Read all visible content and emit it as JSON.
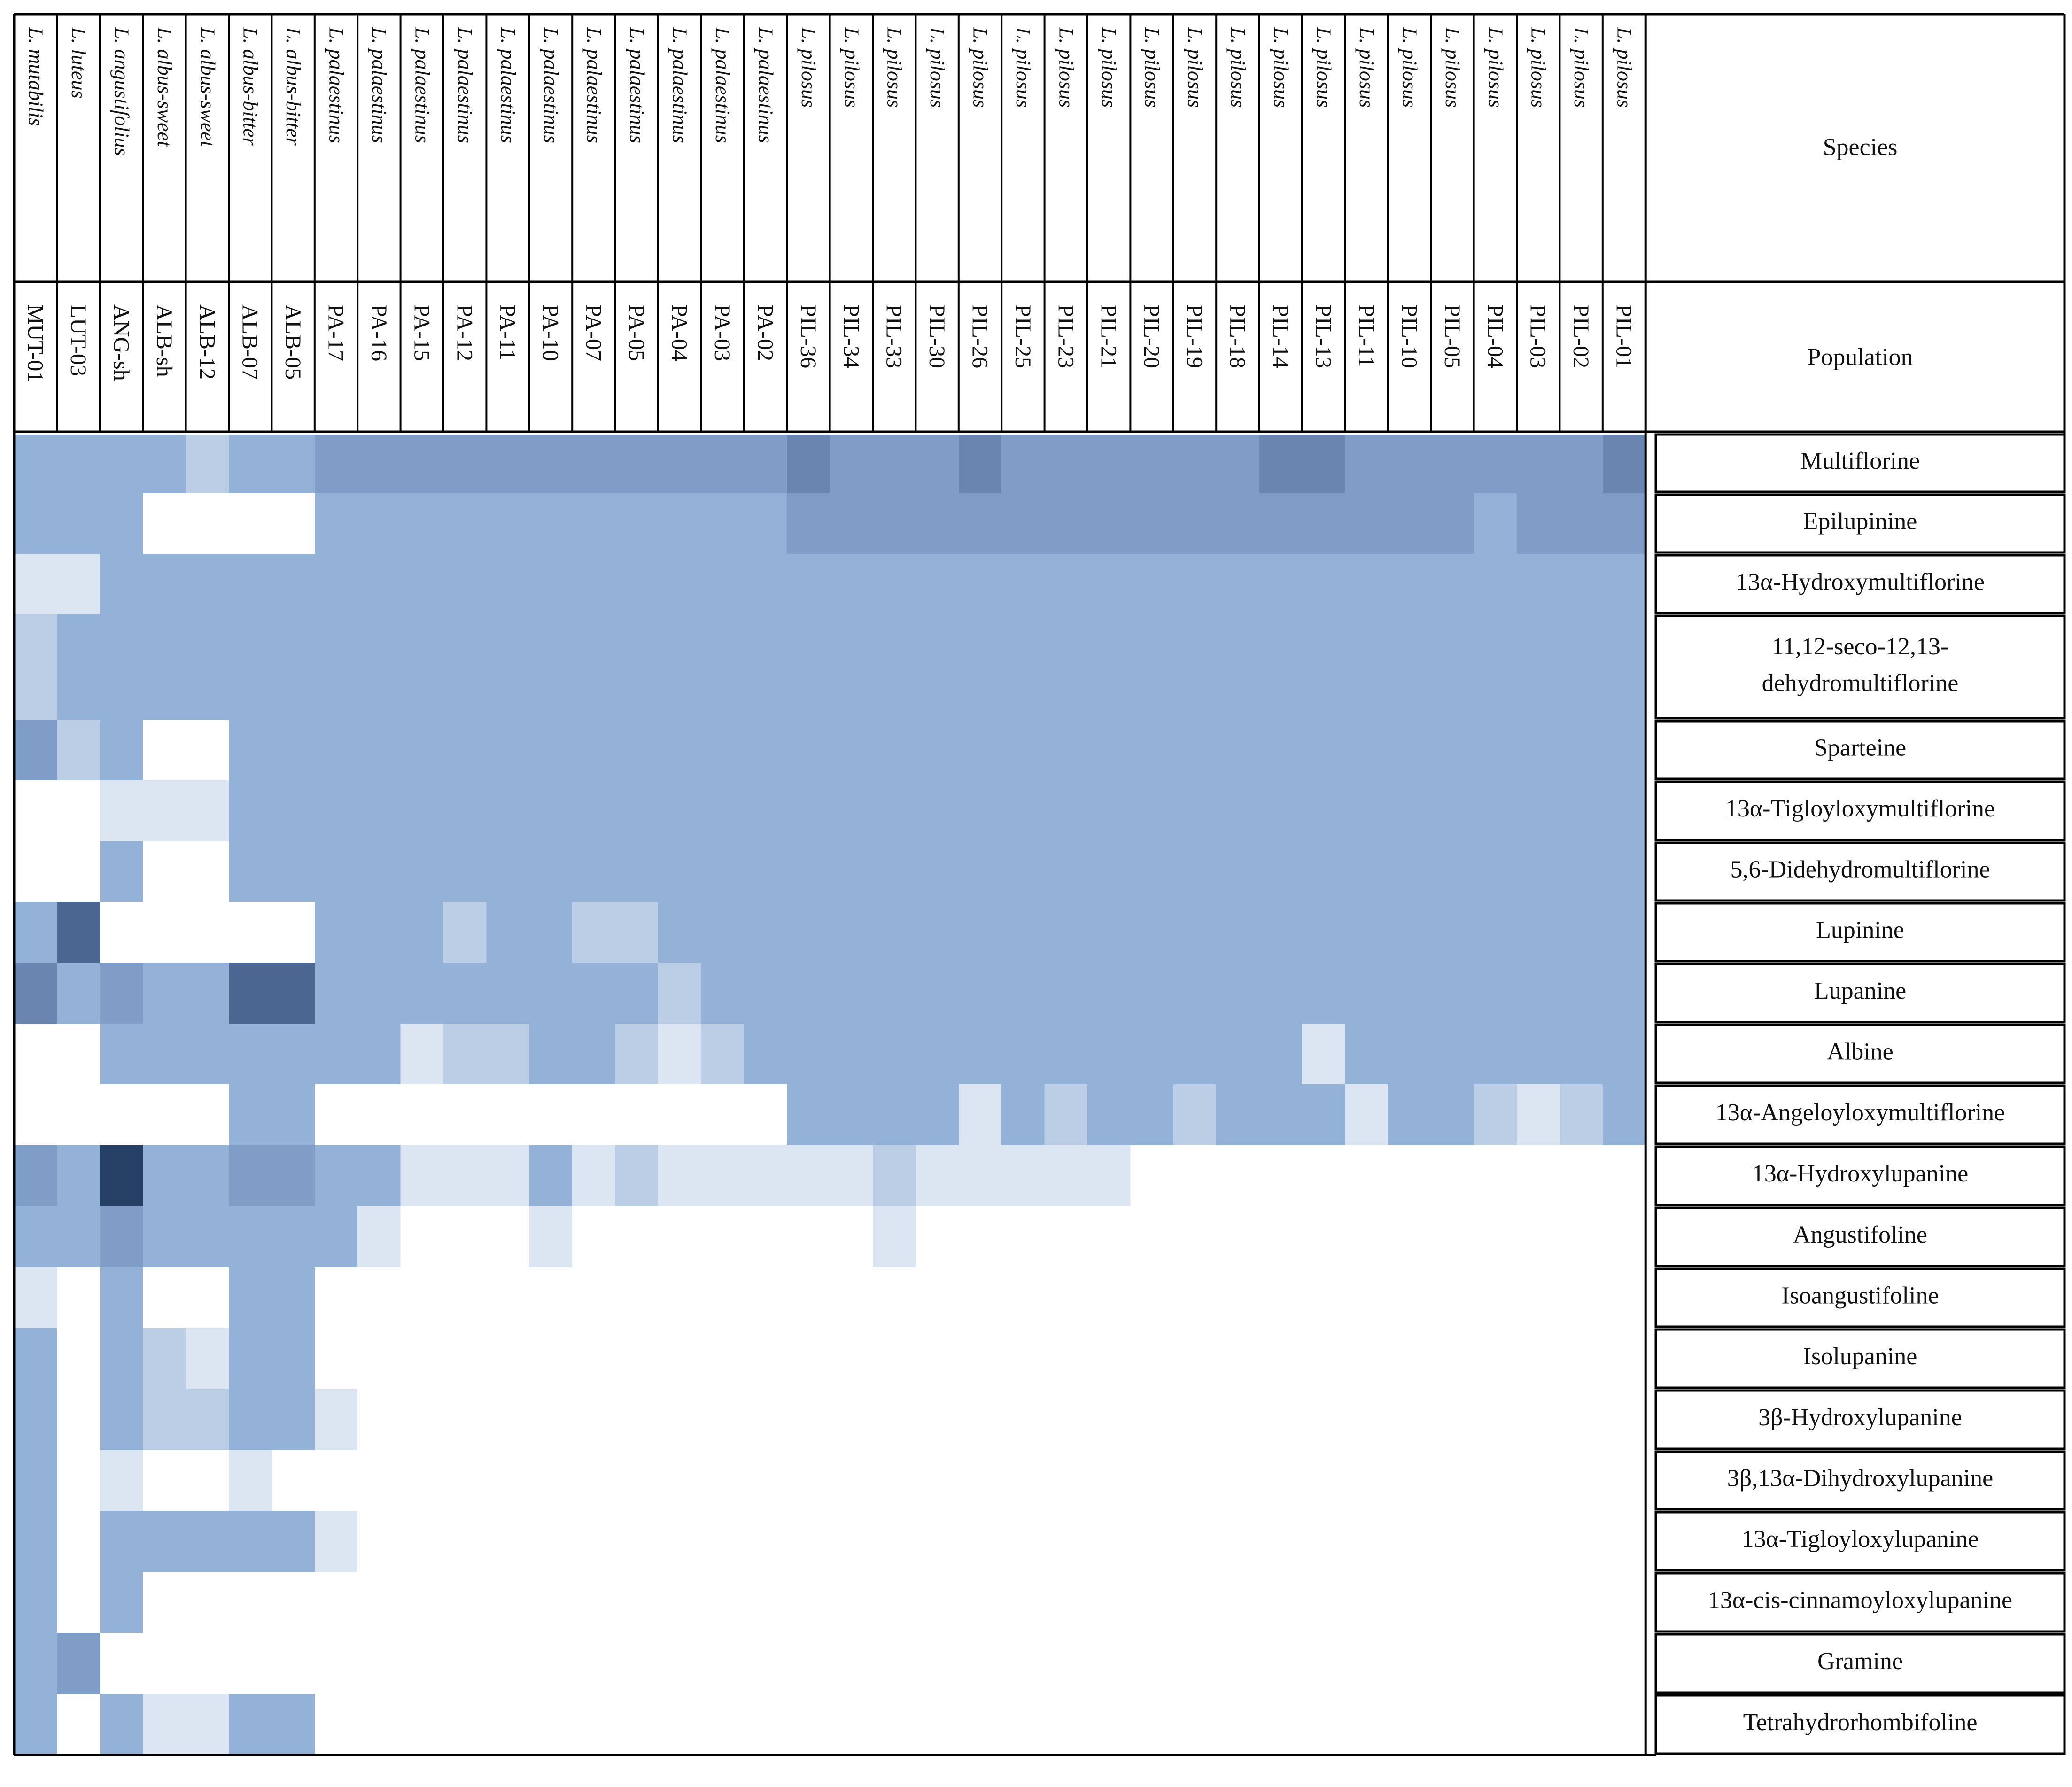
{
  "chart_data": {
    "type": "heatmap",
    "title": "",
    "row_header_titles": {
      "species": "Species",
      "population": "Population"
    },
    "columns": [
      {
        "species": "L. mutabilis",
        "population": "MUT-01"
      },
      {
        "species": "L. luteus",
        "population": "LUT-03"
      },
      {
        "species": "L. angustifolius",
        "population": "ANG-sh"
      },
      {
        "species": "L. albus-sweet",
        "population": "ALB-sh"
      },
      {
        "species": "L. albus-sweet",
        "population": "ALB-12"
      },
      {
        "species": "L. albus-bitter",
        "population": "ALB-07"
      },
      {
        "species": "L. albus-bitter",
        "population": "ALB-05"
      },
      {
        "species": "L. palaestinus",
        "population": "PA-17"
      },
      {
        "species": "L. palaestinus",
        "population": "PA-16"
      },
      {
        "species": "L. palaestinus",
        "population": "PA-15"
      },
      {
        "species": "L. palaestinus",
        "population": "PA-12"
      },
      {
        "species": "L. palaestinus",
        "population": "PA-11"
      },
      {
        "species": "L. palaestinus",
        "population": "PA-10"
      },
      {
        "species": "L. palaestinus",
        "population": "PA-07"
      },
      {
        "species": "L. palaestinus",
        "population": "PA-05"
      },
      {
        "species": "L. palaestinus",
        "population": "PA-04"
      },
      {
        "species": "L. palaestinus",
        "population": "PA-03"
      },
      {
        "species": "L. palaestinus",
        "population": "PA-02"
      },
      {
        "species": "L. pilosus",
        "population": "PIL-36"
      },
      {
        "species": "L. pilosus",
        "population": "PIL-34"
      },
      {
        "species": "L. pilosus",
        "population": "PIL-33"
      },
      {
        "species": "L. pilosus",
        "population": "PIL-30"
      },
      {
        "species": "L. pilosus",
        "population": "PIL-26"
      },
      {
        "species": "L. pilosus",
        "population": "PIL-25"
      },
      {
        "species": "L. pilosus",
        "population": "PIL-23"
      },
      {
        "species": "L. pilosus",
        "population": "PIL-21"
      },
      {
        "species": "L. pilosus",
        "population": "PIL-20"
      },
      {
        "species": "L. pilosus",
        "population": "PIL-19"
      },
      {
        "species": "L. pilosus",
        "population": "PIL-18"
      },
      {
        "species": "L. pilosus",
        "population": "PIL-14"
      },
      {
        "species": "L. pilosus",
        "population": "PIL-13"
      },
      {
        "species": "L. pilosus",
        "population": "PIL-11"
      },
      {
        "species": "L. pilosus",
        "population": "PIL-10"
      },
      {
        "species": "L. pilosus",
        "population": "PIL-05"
      },
      {
        "species": "L. pilosus",
        "population": "PIL-04"
      },
      {
        "species": "L. pilosus",
        "population": "PIL-03"
      },
      {
        "species": "L. pilosus",
        "population": "PIL-02"
      },
      {
        "species": "L. pilosus",
        "population": "PIL-01"
      }
    ],
    "rows": [
      {
        "label": "Multiflorine",
        "lines": [
          "Multiflorine"
        ]
      },
      {
        "label": "Epilupinine",
        "lines": [
          "Epilupinine"
        ]
      },
      {
        "label": "13α-Hydroxymultiflorine",
        "lines": [
          "13α-Hydroxymultiflorine"
        ]
      },
      {
        "label": "11,12-seco-12,13-dehydromultiflorine",
        "lines": [
          "11,12-seco-12,13-",
          "dehydromultiflorine"
        ]
      },
      {
        "label": "Sparteine",
        "lines": [
          "Sparteine"
        ]
      },
      {
        "label": "13α-Tigloyloxymultiflorine",
        "lines": [
          "13α-Tigloyloxymultiflorine"
        ]
      },
      {
        "label": "5,6-Didehydromultiflorine",
        "lines": [
          "5,6-Didehydromultiflorine"
        ]
      },
      {
        "label": "Lupinine",
        "lines": [
          "Lupinine"
        ]
      },
      {
        "label": "Lupanine",
        "lines": [
          "Lupanine"
        ]
      },
      {
        "label": "Albine",
        "lines": [
          "Albine"
        ]
      },
      {
        "label": "13α-Angeloyloxymultiflorine",
        "lines": [
          "13α-Angeloyloxymultiflorine"
        ]
      },
      {
        "label": "13α-Hydroxylupanine",
        "lines": [
          "13α-Hydroxylupanine"
        ]
      },
      {
        "label": "Angustifoline",
        "lines": [
          "Angustifoline"
        ]
      },
      {
        "label": "Isoangustifoline",
        "lines": [
          "Isoangustifoline"
        ]
      },
      {
        "label": "Isolupanine",
        "lines": [
          "Isolupanine"
        ]
      },
      {
        "label": "3β-Hydroxylupanine",
        "lines": [
          "3β-Hydroxylupanine"
        ]
      },
      {
        "label": "3β,13α-Dihydroxylupanine",
        "lines": [
          "3β,13α-Dihydroxylupanine"
        ]
      },
      {
        "label": "13α-Tigloyloxylupanine",
        "lines": [
          "13α-Tigloyloxylupanine"
        ]
      },
      {
        "label": "13α-cis-cinnamoyloxylupanine",
        "lines": [
          "13α-cis-cinnamoyloxylupanine"
        ]
      },
      {
        "label": "Gramine",
        "lines": [
          "Gramine"
        ]
      },
      {
        "label": "Tetrahydrorhombifoline",
        "lines": [
          "Tetrahydrorhombifoline"
        ]
      }
    ],
    "value_scale": "0 = absent (white) to 7 = highest relative abundance (darkest blue)",
    "values": [
      [
        3,
        3,
        3,
        3,
        2,
        3,
        3,
        4,
        4,
        4,
        4,
        4,
        4,
        4,
        4,
        4,
        4,
        4,
        5,
        4,
        4,
        4,
        5,
        4,
        4,
        4,
        4,
        4,
        4,
        5,
        5,
        4,
        4,
        4,
        4,
        4,
        4,
        5
      ],
      [
        3,
        3,
        3,
        0,
        0,
        0,
        0,
        3,
        3,
        3,
        3,
        3,
        3,
        3,
        3,
        3,
        3,
        3,
        4,
        4,
        4,
        4,
        4,
        4,
        4,
        4,
        4,
        4,
        4,
        4,
        4,
        4,
        4,
        4,
        3,
        4,
        4,
        4
      ],
      [
        1,
        1,
        3,
        3,
        3,
        3,
        3,
        3,
        3,
        3,
        3,
        3,
        3,
        3,
        3,
        3,
        3,
        3,
        3,
        3,
        3,
        3,
        3,
        3,
        3,
        3,
        3,
        3,
        3,
        3,
        3,
        3,
        3,
        3,
        3,
        3,
        3,
        3
      ],
      [
        2,
        3,
        3,
        3,
        3,
        3,
        3,
        3,
        3,
        3,
        3,
        3,
        3,
        3,
        3,
        3,
        3,
        3,
        3,
        3,
        3,
        3,
        3,
        3,
        3,
        3,
        3,
        3,
        3,
        3,
        3,
        3,
        3,
        3,
        3,
        3,
        3,
        3
      ],
      [
        4,
        2,
        3,
        0,
        0,
        3,
        3,
        3,
        3,
        3,
        3,
        3,
        3,
        3,
        3,
        3,
        3,
        3,
        3,
        3,
        3,
        3,
        3,
        3,
        3,
        3,
        3,
        3,
        3,
        3,
        3,
        3,
        3,
        3,
        3,
        3,
        3,
        3
      ],
      [
        0,
        0,
        1,
        1,
        1,
        3,
        3,
        3,
        3,
        3,
        3,
        3,
        3,
        3,
        3,
        3,
        3,
        3,
        3,
        3,
        3,
        3,
        3,
        3,
        3,
        3,
        3,
        3,
        3,
        3,
        3,
        3,
        3,
        3,
        3,
        3,
        3,
        3
      ],
      [
        0,
        0,
        3,
        0,
        0,
        3,
        3,
        3,
        3,
        3,
        3,
        3,
        3,
        3,
        3,
        3,
        3,
        3,
        3,
        3,
        3,
        3,
        3,
        3,
        3,
        3,
        3,
        3,
        3,
        3,
        3,
        3,
        3,
        3,
        3,
        3,
        3,
        3
      ],
      [
        3,
        6,
        0,
        0,
        0,
        0,
        0,
        3,
        3,
        3,
        2,
        3,
        3,
        2,
        2,
        3,
        3,
        3,
        3,
        3,
        3,
        3,
        3,
        3,
        3,
        3,
        3,
        3,
        3,
        3,
        3,
        3,
        3,
        3,
        3,
        3,
        3,
        3
      ],
      [
        5,
        3,
        4,
        3,
        3,
        6,
        6,
        3,
        3,
        3,
        3,
        3,
        3,
        3,
        3,
        2,
        3,
        3,
        3,
        3,
        3,
        3,
        3,
        3,
        3,
        3,
        3,
        3,
        3,
        3,
        3,
        3,
        3,
        3,
        3,
        3,
        3,
        3
      ],
      [
        0,
        0,
        3,
        3,
        3,
        3,
        3,
        3,
        3,
        1,
        2,
        2,
        3,
        3,
        2,
        1,
        2,
        3,
        3,
        3,
        3,
        3,
        3,
        3,
        3,
        3,
        3,
        3,
        3,
        3,
        1,
        3,
        3,
        3,
        3,
        3,
        3,
        3
      ],
      [
        0,
        0,
        0,
        0,
        0,
        3,
        3,
        0,
        0,
        0,
        0,
        0,
        0,
        0,
        0,
        0,
        0,
        0,
        3,
        3,
        3,
        3,
        1,
        3,
        2,
        3,
        3,
        2,
        3,
        3,
        3,
        1,
        3,
        3,
        2,
        1,
        2,
        3
      ],
      [
        4,
        3,
        7,
        3,
        3,
        4,
        4,
        3,
        3,
        1,
        1,
        1,
        3,
        1,
        2,
        1,
        1,
        1,
        1,
        1,
        2,
        1,
        1,
        1,
        1,
        1,
        0,
        0,
        0,
        0,
        0,
        0,
        0,
        0,
        0,
        0,
        0,
        0
      ],
      [
        3,
        3,
        4,
        3,
        3,
        3,
        3,
        3,
        1,
        0,
        0,
        0,
        1,
        0,
        0,
        0,
        0,
        0,
        0,
        0,
        1,
        0,
        0,
        0,
        0,
        0,
        0,
        0,
        0,
        0,
        0,
        0,
        0,
        0,
        0,
        0,
        0,
        0
      ],
      [
        1,
        0,
        3,
        0,
        0,
        3,
        3,
        0,
        0,
        0,
        0,
        0,
        0,
        0,
        0,
        0,
        0,
        0,
        0,
        0,
        0,
        0,
        0,
        0,
        0,
        0,
        0,
        0,
        0,
        0,
        0,
        0,
        0,
        0,
        0,
        0,
        0,
        0
      ],
      [
        3,
        0,
        3,
        2,
        1,
        3,
        3,
        0,
        0,
        0,
        0,
        0,
        0,
        0,
        0,
        0,
        0,
        0,
        0,
        0,
        0,
        0,
        0,
        0,
        0,
        0,
        0,
        0,
        0,
        0,
        0,
        0,
        0,
        0,
        0,
        0,
        0,
        0
      ],
      [
        3,
        0,
        3,
        2,
        2,
        3,
        3,
        1,
        0,
        0,
        0,
        0,
        0,
        0,
        0,
        0,
        0,
        0,
        0,
        0,
        0,
        0,
        0,
        0,
        0,
        0,
        0,
        0,
        0,
        0,
        0,
        0,
        0,
        0,
        0,
        0,
        0,
        0
      ],
      [
        3,
        0,
        1,
        0,
        0,
        1,
        0,
        0,
        0,
        0,
        0,
        0,
        0,
        0,
        0,
        0,
        0,
        0,
        0,
        0,
        0,
        0,
        0,
        0,
        0,
        0,
        0,
        0,
        0,
        0,
        0,
        0,
        0,
        0,
        0,
        0,
        0,
        0
      ],
      [
        3,
        0,
        3,
        3,
        3,
        3,
        3,
        1,
        0,
        0,
        0,
        0,
        0,
        0,
        0,
        0,
        0,
        0,
        0,
        0,
        0,
        0,
        0,
        0,
        0,
        0,
        0,
        0,
        0,
        0,
        0,
        0,
        0,
        0,
        0,
        0,
        0,
        0
      ],
      [
        3,
        0,
        3,
        0,
        0,
        0,
        0,
        0,
        0,
        0,
        0,
        0,
        0,
        0,
        0,
        0,
        0,
        0,
        0,
        0,
        0,
        0,
        0,
        0,
        0,
        0,
        0,
        0,
        0,
        0,
        0,
        0,
        0,
        0,
        0,
        0,
        0,
        0
      ],
      [
        3,
        4,
        0,
        0,
        0,
        0,
        0,
        0,
        0,
        0,
        0,
        0,
        0,
        0,
        0,
        0,
        0,
        0,
        0,
        0,
        0,
        0,
        0,
        0,
        0,
        0,
        0,
        0,
        0,
        0,
        0,
        0,
        0,
        0,
        0,
        0,
        0,
        0
      ],
      [
        3,
        0,
        3,
        1,
        1,
        3,
        3,
        0,
        0,
        0,
        0,
        0,
        0,
        0,
        0,
        0,
        0,
        0,
        0,
        0,
        0,
        0,
        0,
        0,
        0,
        0,
        0,
        0,
        0,
        0,
        0,
        0,
        0,
        0,
        0,
        0,
        0,
        0
      ]
    ],
    "palette": [
      "#ffffff",
      "#dce5f2",
      "#bccde6",
      "#94b2d8",
      "#7f9dc6",
      "#6a85b0",
      "#4a6691",
      "#263f64"
    ]
  }
}
